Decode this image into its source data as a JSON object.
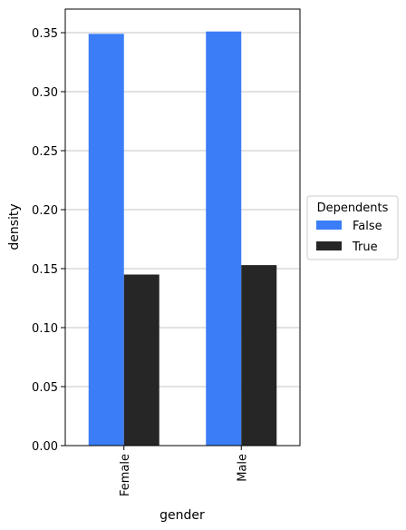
{
  "chart_data": {
    "type": "bar",
    "xlabel": "gender",
    "ylabel": "density",
    "categories": [
      "Female",
      "Male"
    ],
    "series": [
      {
        "name": "False",
        "color": "#3a7df7",
        "values": [
          0.349,
          0.351
        ]
      },
      {
        "name": "True",
        "color": "#262626",
        "values": [
          0.145,
          0.153
        ]
      }
    ],
    "ylim": [
      0,
      0.37
    ],
    "yticks": [
      "0.00",
      "0.05",
      "0.10",
      "0.15",
      "0.20",
      "0.25",
      "0.30",
      "0.35"
    ],
    "grid": "horizontal",
    "legend": {
      "title": "Dependents",
      "placement": "right",
      "entries": [
        "False",
        "True"
      ]
    }
  }
}
